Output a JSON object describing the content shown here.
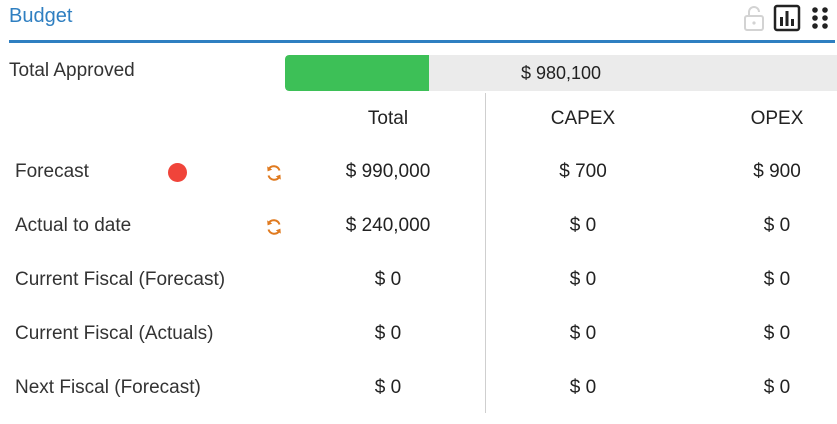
{
  "header": {
    "title": "Budget",
    "icons": [
      "lock-icon",
      "bar-chart-icon",
      "grid-dots-icon"
    ]
  },
  "approved": {
    "label": "Total Approved",
    "value": "$ 980,100",
    "fill_fraction": 0.26,
    "fill_color": "#3dc057"
  },
  "columns": {
    "total": "Total",
    "capex": "CAPEX",
    "opex": "OPEX"
  },
  "rows": [
    {
      "label": "Forecast",
      "status_dot": true,
      "sync_icon": true,
      "total": "$ 990,000",
      "capex": "$ 700",
      "opex": "$ 900"
    },
    {
      "label": "Actual to date",
      "status_dot": false,
      "sync_icon": true,
      "total": "$ 240,000",
      "capex": "$ 0",
      "opex": "$ 0"
    },
    {
      "label": "Current Fiscal (Forecast)",
      "status_dot": false,
      "sync_icon": false,
      "total": "$ 0",
      "capex": "$ 0",
      "opex": "$ 0"
    },
    {
      "label": "Current Fiscal (Actuals)",
      "status_dot": false,
      "sync_icon": false,
      "total": "$ 0",
      "capex": "$ 0",
      "opex": "$ 0"
    },
    {
      "label": "Next Fiscal (Forecast)",
      "status_dot": false,
      "sync_icon": false,
      "total": "$ 0",
      "capex": "$ 0",
      "opex": "$ 0"
    }
  ],
  "colors": {
    "accent": "#2f7fc1",
    "status_red": "#f0443a",
    "sync_orange": "#e07a1f"
  }
}
